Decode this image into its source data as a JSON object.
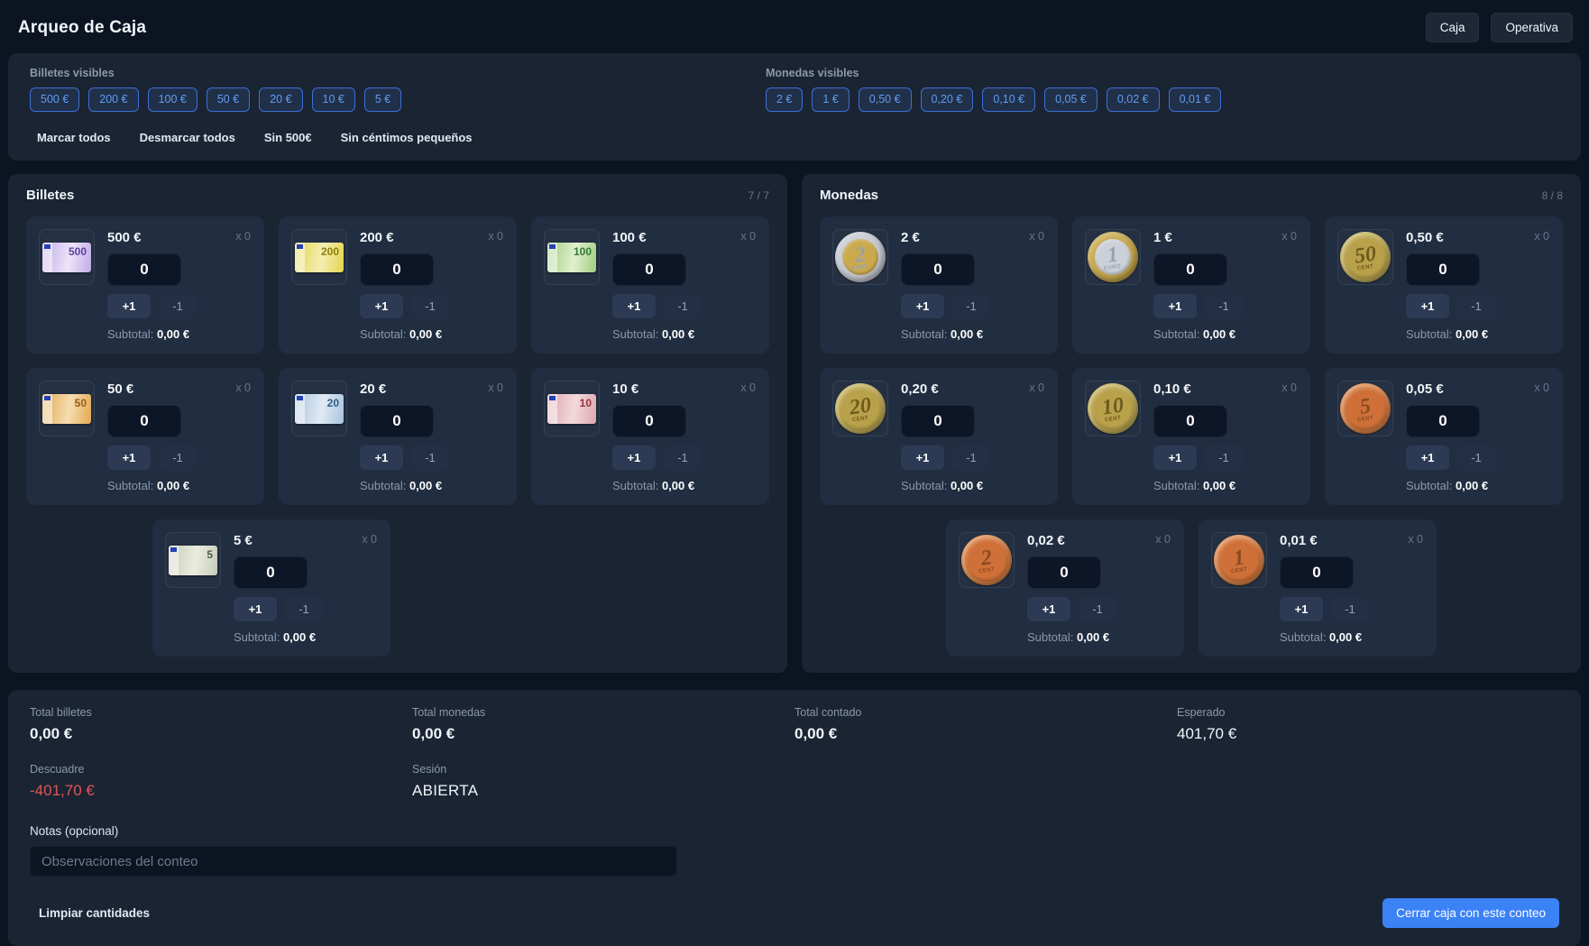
{
  "header": {
    "title": "Arqueo de Caja",
    "nav": [
      {
        "label": "Caja"
      },
      {
        "label": "Operativa"
      }
    ]
  },
  "filters": {
    "bills_label": "Billetes visibles",
    "bills_chips": [
      "500 €",
      "200 €",
      "100 €",
      "50 €",
      "20 €",
      "10 €",
      "5 €"
    ],
    "coins_label": "Monedas visibles",
    "coins_chips": [
      "2 €",
      "1 €",
      "0,50 €",
      "0,20 €",
      "0,10 €",
      "0,05 €",
      "0,02 €",
      "0,01 €"
    ],
    "actions": [
      "Marcar todos",
      "Desmarcar todos",
      "Sin 500€",
      "Sin céntimos pequeños"
    ],
    "chip_border_color": "#3a6fd8",
    "chip_text_color": "#5e9bf0"
  },
  "cards": {
    "inc_label": "+1",
    "dec_label": "-1"
  },
  "bills": {
    "title": "Billetes",
    "counter": "7 / 7",
    "items": [
      {
        "denom": "500 €",
        "mult": "x 0",
        "value": "0",
        "subtotal_label": "Subtotal:",
        "subtotal_value": "0,00 €",
        "note_num": "500",
        "colors": {
          "n1": "#c0abe8",
          "n2": "#ece4f8",
          "nc": "#5a3ea0"
        }
      },
      {
        "denom": "200 €",
        "mult": "x 0",
        "value": "0",
        "subtotal_label": "Subtotal:",
        "subtotal_value": "0,00 €",
        "note_num": "200",
        "colors": {
          "n1": "#e4d44c",
          "n2": "#f4eeb2",
          "nc": "#8f7d08"
        }
      },
      {
        "denom": "100 €",
        "mult": "x 0",
        "value": "0",
        "subtotal_label": "Subtotal:",
        "subtotal_value": "0,00 €",
        "note_num": "100",
        "colors": {
          "n1": "#9fcd7f",
          "n2": "#e1f0cd",
          "nc": "#2f7a35"
        }
      },
      {
        "denom": "50 €",
        "mult": "x 0",
        "value": "0",
        "subtotal_label": "Subtotal:",
        "subtotal_value": "0,00 €",
        "note_num": "50",
        "colors": {
          "n1": "#e2a851",
          "n2": "#f6ddb0",
          "nc": "#955d12"
        }
      },
      {
        "denom": "20 €",
        "mult": "x 0",
        "value": "0",
        "subtotal_label": "Subtotal:",
        "subtotal_value": "0,00 €",
        "note_num": "20",
        "colors": {
          "n1": "#a9c3de",
          "n2": "#e0eaf4",
          "nc": "#2f5d88"
        }
      },
      {
        "denom": "10 €",
        "mult": "x 0",
        "value": "0",
        "subtotal_label": "Subtotal:",
        "subtotal_value": "0,00 €",
        "note_num": "10",
        "colors": {
          "n1": "#dca6ad",
          "n2": "#f2d9db",
          "nc": "#973242"
        }
      },
      {
        "denom": "5 €",
        "mult": "x 0",
        "value": "0",
        "subtotal_label": "Subtotal:",
        "subtotal_value": "0,00 €",
        "note_num": "5",
        "colors": {
          "n1": "#c6cbb7",
          "n2": "#eaeddf",
          "nc": "#555c4b"
        }
      }
    ]
  },
  "coins": {
    "title": "Monedas",
    "counter": "8 / 8",
    "items": [
      {
        "denom": "2 €",
        "mult": "x 0",
        "value": "0",
        "subtotal_label": "Subtotal:",
        "subtotal_value": "0,00 €",
        "coin_num": "2",
        "coin_small": "EURO",
        "bimetal": true,
        "colors": {
          "cr": "#c8ccd4",
          "cf": "#cbaa4e",
          "cn": "#9aa1ad"
        }
      },
      {
        "denom": "1 €",
        "mult": "x 0",
        "value": "0",
        "subtotal_label": "Subtotal:",
        "subtotal_value": "0,00 €",
        "coin_num": "1",
        "coin_small": "EURO",
        "bimetal": true,
        "colors": {
          "cr": "#c9a94e",
          "cf": "#ccd1d9",
          "cn": "#9aa2ae"
        }
      },
      {
        "denom": "0,50 €",
        "mult": "x 0",
        "value": "0",
        "subtotal_label": "Subtotal:",
        "subtotal_value": "0,00 €",
        "coin_num": "50",
        "coin_small": "CENT",
        "bimetal": false,
        "colors": {
          "cr": "#c7b35c",
          "cf": "#b8a14a",
          "cn": "#6e5a1e"
        }
      },
      {
        "denom": "0,20 €",
        "mult": "x 0",
        "value": "0",
        "subtotal_label": "Subtotal:",
        "subtotal_value": "0,00 €",
        "coin_num": "20",
        "coin_small": "CENT",
        "bimetal": false,
        "colors": {
          "cr": "#c7b35c",
          "cf": "#b8a14a",
          "cn": "#6e5a1e"
        }
      },
      {
        "denom": "0,10 €",
        "mult": "x 0",
        "value": "0",
        "subtotal_label": "Subtotal:",
        "subtotal_value": "0,00 €",
        "coin_num": "10",
        "coin_small": "CENT",
        "bimetal": false,
        "colors": {
          "cr": "#c7b35c",
          "cf": "#b8a14a",
          "cn": "#6e5a1e"
        }
      },
      {
        "denom": "0,05 €",
        "mult": "x 0",
        "value": "0",
        "subtotal_label": "Subtotal:",
        "subtotal_value": "0,00 €",
        "coin_num": "5",
        "coin_small": "CENT",
        "bimetal": false,
        "colors": {
          "cr": "#e08748",
          "cf": "#cf7038",
          "cn": "#8a4a20"
        }
      },
      {
        "denom": "0,02 €",
        "mult": "x 0",
        "value": "0",
        "subtotal_label": "Subtotal:",
        "subtotal_value": "0,00 €",
        "coin_num": "2",
        "coin_small": "CENT",
        "bimetal": false,
        "colors": {
          "cr": "#e08748",
          "cf": "#cf7038",
          "cn": "#8a4a20"
        }
      },
      {
        "denom": "0,01 €",
        "mult": "x 0",
        "value": "0",
        "subtotal_label": "Subtotal:",
        "subtotal_value": "0,00 €",
        "coin_num": "1",
        "coin_small": "CENT",
        "bimetal": false,
        "colors": {
          "cr": "#e08748",
          "cf": "#cf7038",
          "cn": "#8a4a20"
        }
      }
    ]
  },
  "summary": {
    "cols": [
      {
        "label": "Total billetes",
        "value": "0,00 €"
      },
      {
        "label": "Total monedas",
        "value": "0,00 €"
      },
      {
        "label": "Total contado",
        "value": "0,00 €"
      },
      {
        "label": "Esperado",
        "value": "401,70 €"
      }
    ],
    "row2": [
      {
        "label": "Descuadre",
        "value": "-401,70 €"
      },
      {
        "label": "Sesión",
        "value": "ABIERTA"
      }
    ],
    "negative_color": "#e05555",
    "notes_label": "Notas (opcional)",
    "notes_placeholder": "Observaciones del conteo",
    "clear_label": "Limpiar cantidades",
    "close_label": "Cerrar caja con este conteo",
    "accent_color": "#3b82f6"
  }
}
